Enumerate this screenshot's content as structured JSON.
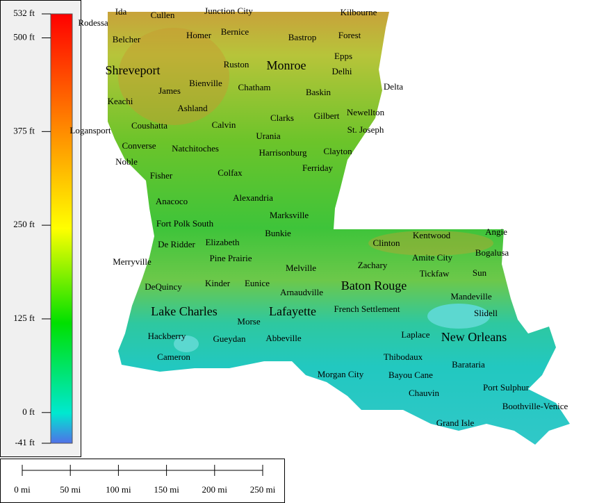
{
  "legend": {
    "ticks": [
      {
        "value": 532,
        "label": "532 ft"
      },
      {
        "value": 500,
        "label": "500 ft"
      },
      {
        "value": 375,
        "label": "375 ft"
      },
      {
        "value": 250,
        "label": "250 ft"
      },
      {
        "value": 125,
        "label": "125 ft"
      },
      {
        "value": 0,
        "label": "0 ft"
      },
      {
        "value": -41,
        "label": "-41 ft"
      }
    ]
  },
  "scale_bar": {
    "ticks": [
      {
        "value": 0,
        "label": "0 mi"
      },
      {
        "value": 50,
        "label": "50 mi"
      },
      {
        "value": 100,
        "label": "100 mi"
      },
      {
        "value": 150,
        "label": "150 mi"
      },
      {
        "value": 200,
        "label": "200 mi"
      },
      {
        "value": 250,
        "label": "250 mi"
      }
    ]
  },
  "places": [
    "Ida",
    "Cullen",
    "Junction City",
    "Kilbourne",
    "Rodessa",
    "Belcher",
    "Homer",
    "Bernice",
    "Bastrop",
    "Forest",
    "Epps",
    "Shreveport",
    "Ruston",
    "Monroe",
    "Delhi",
    "Delta",
    "James",
    "Bienville",
    "Chatham",
    "Baskin",
    "Keachi",
    "Ashland",
    "Clarks",
    "Gilbert",
    "Newellton",
    "Coushatta",
    "Calvin",
    "St. Joseph",
    "Logansport",
    "Urania",
    "Converse",
    "Natchitoches",
    "Harrisonburg",
    "Clayton",
    "Noble",
    "Ferriday",
    "Fisher",
    "Colfax",
    "Alexandria",
    "Anacoco",
    "Marksville",
    "Fort Polk South",
    "Bunkie",
    "Angie",
    "Kentwood",
    "Clinton",
    "De Ridder",
    "Elizabeth",
    "Bogalusa",
    "Merryville",
    "Pine Prairie",
    "Amite City",
    "Zachary",
    "Melville",
    "Tickfaw",
    "Sun",
    "DeQuincy",
    "Kinder",
    "Eunice",
    "Baton Rouge",
    "Arnaudville",
    "Mandeville",
    "French Settlement",
    "Lake Charles",
    "Lafayette",
    "Slidell",
    "Morse",
    "Hackberry",
    "Gueydan",
    "Abbeville",
    "Laplace",
    "New Orleans",
    "Cameron",
    "Thibodaux",
    "Barataria",
    "Morgan City",
    "Bayou Cane",
    "Port Sulphur",
    "Chauvin",
    "Boothville-Venice",
    "Grand Isle"
  ]
}
